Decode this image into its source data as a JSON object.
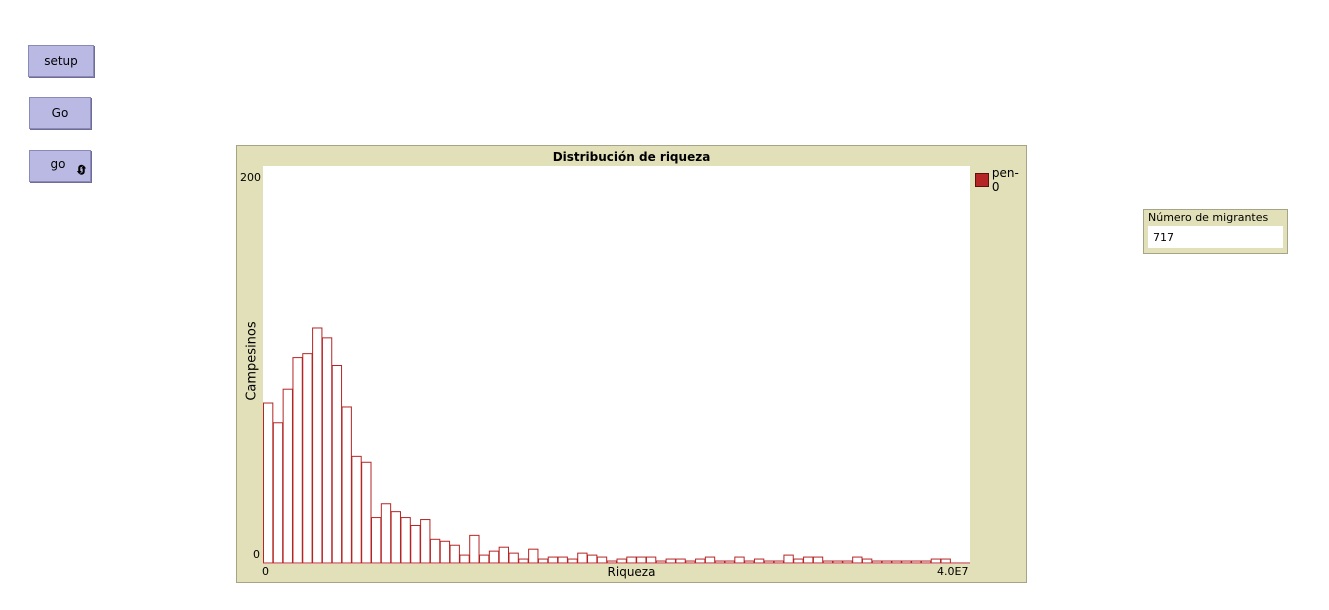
{
  "buttons": {
    "setup": "setup",
    "go_once": "Go",
    "go_forever": "go",
    "forever_icon": "forever-loop-icon"
  },
  "plot": {
    "title": "Distribución de riqueza",
    "legend": "pen-0",
    "legend_color": "#b52525"
  },
  "monitor": {
    "label": "Número de migrantes",
    "value": "717"
  },
  "chart_data": {
    "type": "bar",
    "title": "Distribución de riqueza",
    "xlabel": "Riqueza",
    "ylabel": "Campesinos",
    "xlim": [
      0,
      40000000
    ],
    "ylim": [
      0,
      200
    ],
    "x_tick_labels": [
      "0",
      "4.0E7"
    ],
    "y_tick_labels": [
      "0",
      "200"
    ],
    "bar_color": "#b52525",
    "series": [
      {
        "name": "pen-0",
        "values": [
          81,
          71,
          88,
          104,
          106,
          119,
          114,
          100,
          79,
          54,
          51,
          23,
          30,
          26,
          23,
          19,
          22,
          12,
          11,
          9,
          4,
          14,
          4,
          6,
          8,
          5,
          2,
          7,
          2,
          3,
          3,
          2,
          5,
          4,
          3,
          1,
          2,
          3,
          3,
          3,
          1,
          2,
          2,
          1,
          2,
          3,
          1,
          1,
          3,
          1,
          2,
          1,
          1,
          4,
          2,
          3,
          3,
          1,
          1,
          1,
          3,
          2,
          1,
          1,
          1,
          1,
          1,
          1,
          2,
          2,
          0,
          0
        ]
      }
    ]
  }
}
